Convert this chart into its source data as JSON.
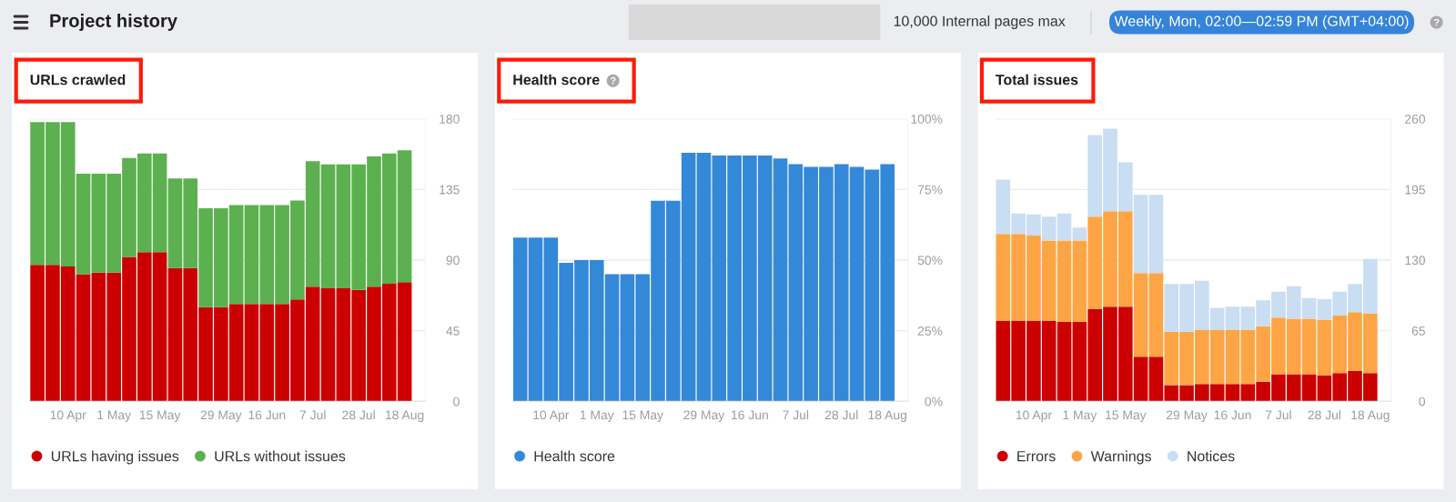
{
  "chart_data": [
    {
      "type": "other",
      "title": "Project history",
      "annotations": [
        "10,000 Internal pages max",
        "Weekly, Mon, 02:00—02:59 PM (GMT+04:00)"
      ]
    },
    {
      "type": "bar",
      "title": "URLs crawled",
      "stacked": true,
      "grid": "y",
      "legend": "bottom",
      "categories": [
        null,
        null,
        "10 Apr",
        null,
        null,
        "1 May",
        null,
        null,
        "15 May",
        null,
        null,
        null,
        "29 May",
        null,
        null,
        "16 Jun",
        null,
        null,
        "7 Jul",
        null,
        null,
        "28 Jul",
        null,
        null,
        "18 Aug"
      ],
      "series": [
        {
          "name": "URLs having issues",
          "color": "#cc0000",
          "values": [
            87,
            87,
            86,
            81,
            82,
            82,
            92,
            95,
            95,
            85,
            85,
            60,
            60,
            62,
            62,
            62,
            62,
            65,
            73,
            72,
            72,
            71,
            73,
            75,
            76
          ]
        },
        {
          "name": "URLs without issues",
          "color": "#5cb04f",
          "values": [
            91,
            91,
            92,
            64,
            63,
            63,
            63,
            63,
            63,
            57,
            57,
            63,
            63,
            63,
            63,
            63,
            63,
            63,
            80,
            79,
            79,
            80,
            83,
            83,
            84
          ]
        }
      ],
      "ylim": [
        0,
        180
      ],
      "yticks": [
        0,
        45,
        90,
        135,
        180
      ]
    },
    {
      "type": "bar",
      "title": "Health score",
      "grid": "y",
      "legend": "bottom",
      "categories": [
        null,
        null,
        "10 Apr",
        null,
        null,
        "1 May",
        null,
        null,
        "15 May",
        null,
        null,
        null,
        "29 May",
        null,
        null,
        "16 Jun",
        null,
        null,
        "7 Jul",
        null,
        null,
        "28 Jul",
        null,
        null,
        "18 Aug"
      ],
      "series": [
        {
          "name": "Health score",
          "color": "#3388d8",
          "values": [
            58,
            58,
            58,
            49,
            50,
            50,
            45,
            45,
            45,
            71,
            71,
            88,
            88,
            87,
            87,
            87,
            87,
            86,
            84,
            83,
            83,
            84,
            83,
            82,
            84
          ]
        }
      ],
      "ylim": [
        0,
        100
      ],
      "yticks": [
        {
          "value": 0,
          "label": "0%"
        },
        {
          "value": 25,
          "label": "25%"
        },
        {
          "value": 50,
          "label": "50%"
        },
        {
          "value": 75,
          "label": "75%"
        },
        {
          "value": 100,
          "label": "100%"
        }
      ]
    },
    {
      "type": "bar",
      "title": "Total issues",
      "stacked": true,
      "grid": "y",
      "legend": "bottom",
      "categories": [
        null,
        null,
        "10 Apr",
        null,
        null,
        "1 May",
        null,
        null,
        "15 May",
        null,
        null,
        null,
        "29 May",
        null,
        null,
        "16 Jun",
        null,
        null,
        "7 Jul",
        null,
        null,
        "28 Jul",
        null,
        null,
        "18 Aug"
      ],
      "series": [
        {
          "name": "Errors",
          "color": "#cc0000",
          "values": [
            74,
            74,
            74,
            74,
            73,
            73,
            85,
            87,
            87,
            41,
            41,
            15,
            15,
            16,
            16,
            16,
            16,
            18,
            25,
            25,
            25,
            24,
            26,
            28,
            26
          ]
        },
        {
          "name": "Warnings",
          "color": "#fda544",
          "values": [
            80,
            80,
            79,
            74,
            75,
            75,
            85,
            88,
            88,
            77,
            77,
            49,
            49,
            50,
            50,
            50,
            50,
            51,
            52,
            51,
            51,
            51,
            53,
            54,
            55
          ]
        },
        {
          "name": "Notices",
          "color": "#c9ddf3",
          "values": [
            50,
            19,
            19,
            22,
            25,
            12,
            75,
            76,
            45,
            72,
            72,
            44,
            44,
            45,
            20,
            21,
            21,
            24,
            24,
            30,
            19,
            19,
            22,
            26,
            50
          ]
        }
      ],
      "ylim": [
        0,
        260
      ],
      "yticks": [
        0,
        65,
        130,
        195,
        260
      ]
    }
  ]
}
